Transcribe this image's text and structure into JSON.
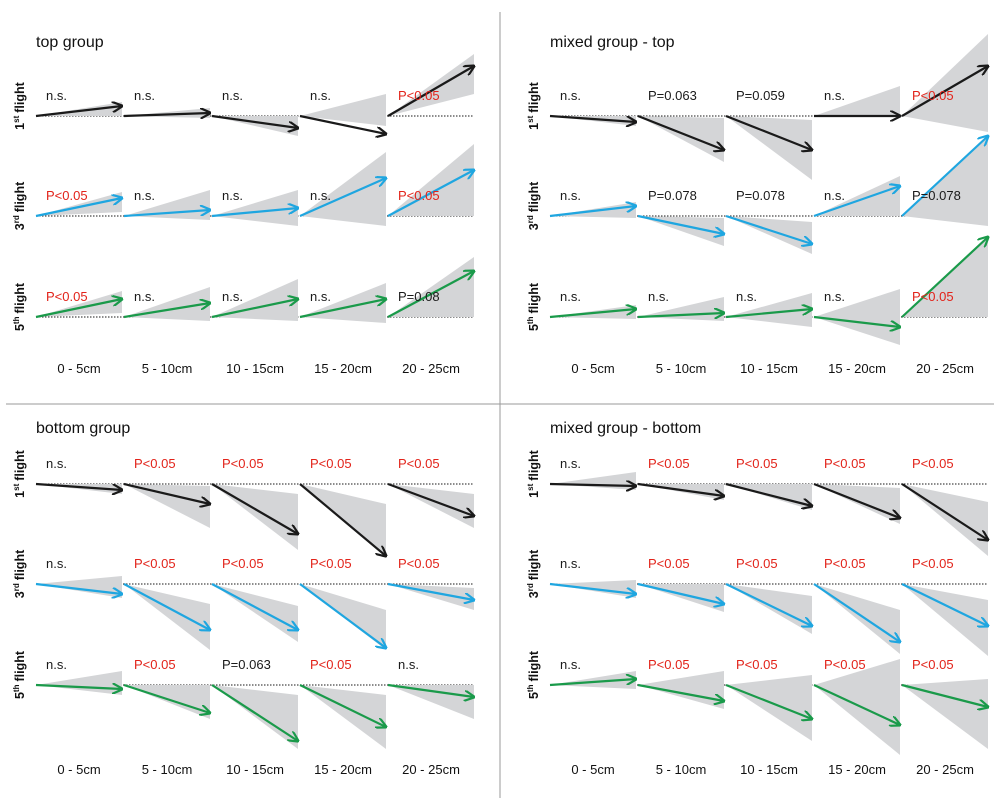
{
  "colors": {
    "flight1": "#1a1a1a",
    "flight3": "#1fa6e0",
    "flight5": "#1a9a4a",
    "significant": "#e2231a",
    "nonsignificant": "#1a1a1a",
    "ci": "#d4d5d7",
    "divider": "#9a9a9a"
  },
  "bins": [
    "0 - 5cm",
    "5 - 10cm",
    "10 - 15cm",
    "15 - 20cm",
    "20 - 25cm"
  ],
  "flights": [
    {
      "key": "flight1",
      "num": "1",
      "sup": "st",
      "word": "flight"
    },
    {
      "key": "flight3",
      "num": "3",
      "sup": "rd",
      "word": "flight"
    },
    {
      "key": "flight5",
      "num": "5",
      "sup": "th",
      "word": "flight"
    }
  ],
  "panels": [
    {
      "title": "top group",
      "rows": [
        {
          "labels": [
            "n.s.",
            "n.s.",
            "n.s.",
            "n.s.",
            "P<0.05"
          ]
        },
        {
          "labels": [
            "P<0.05",
            "n.s.",
            "n.s.",
            "n.s.",
            "P<0.05"
          ]
        },
        {
          "labels": [
            "P<0.05",
            "n.s.",
            "n.s.",
            "n.s.",
            "P=0.08"
          ]
        }
      ]
    },
    {
      "title": "mixed group - top",
      "rows": [
        {
          "labels": [
            "n.s.",
            "P=0.063",
            "P=0.059",
            "n.s.",
            "P<0.05"
          ]
        },
        {
          "labels": [
            "n.s.",
            "P=0.078",
            "P=0.078",
            "n.s.",
            "P=0.078"
          ]
        },
        {
          "labels": [
            "n.s.",
            "n.s.",
            "n.s.",
            "n.s.",
            "P<0.05"
          ]
        }
      ]
    },
    {
      "title": "bottom group",
      "rows": [
        {
          "labels": [
            "n.s.",
            "P<0.05",
            "P<0.05",
            "P<0.05",
            "P<0.05"
          ]
        },
        {
          "labels": [
            "n.s.",
            "P<0.05",
            "P<0.05",
            "P<0.05",
            "P<0.05"
          ]
        },
        {
          "labels": [
            "n.s.",
            "P<0.05",
            "P=0.063",
            "P<0.05",
            "n.s."
          ]
        }
      ]
    },
    {
      "title": "mixed group - bottom",
      "rows": [
        {
          "labels": [
            "n.s.",
            "P<0.05",
            "P<0.05",
            "P<0.05",
            "P<0.05"
          ]
        },
        {
          "labels": [
            "n.s.",
            "P<0.05",
            "P<0.05",
            "P<0.05",
            "P<0.05"
          ]
        },
        {
          "labels": [
            "n.s.",
            "P<0.05",
            "P<0.05",
            "P<0.05",
            "P<0.05"
          ]
        }
      ]
    }
  ]
}
